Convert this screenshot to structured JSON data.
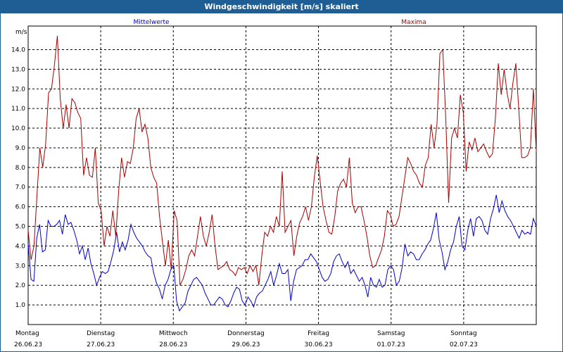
{
  "window": {
    "title": "Windgeschwindigkeit [m/s] skaliert"
  },
  "chart_data": {
    "type": "line",
    "title": "Windgeschwindigkeit [m/s] skaliert",
    "ylabel": "m/s",
    "ylim": [
      0,
      15.2
    ],
    "yticks": [
      "1.0",
      "2.0",
      "3.0",
      "4.0",
      "5.0",
      "6.0",
      "7.0",
      "8.0",
      "9.0",
      "10.0",
      "11.0",
      "12.0",
      "13.0",
      "14.0"
    ],
    "x_day_labels": [
      {
        "day": "Montag",
        "date": "26.06.23"
      },
      {
        "day": "Dienstag",
        "date": "27.06.23"
      },
      {
        "day": "Mittwoch",
        "date": "28.06.23"
      },
      {
        "day": "Donnerstag",
        "date": "29.06.23"
      },
      {
        "day": "Freitag",
        "date": "30.06.23"
      },
      {
        "day": "Samstag",
        "date": "01.07.23"
      },
      {
        "day": "Sonntag",
        "date": "02.07.23"
      }
    ],
    "xlim_days": [
      0,
      7.0
    ],
    "grid": true,
    "series": [
      {
        "name": "Mittelwerte",
        "color": "#0000cc",
        "values": [
          4.1,
          2.3,
          2.2,
          4.4,
          5.1,
          3.7,
          3.8,
          5.3,
          5.0,
          5.0,
          5.1,
          5.3,
          4.6,
          5.6,
          5.1,
          5.2,
          4.8,
          4.3,
          3.6,
          4.0,
          3.3,
          3.9,
          3.1,
          2.6,
          2.0,
          2.4,
          2.7,
          2.6,
          2.7,
          3.2,
          3.8,
          4.7,
          3.7,
          4.2,
          3.8,
          4.3,
          5.1,
          4.7,
          4.4,
          4.2,
          4.0,
          3.7,
          3.5,
          3.4,
          2.6,
          2.1,
          1.8,
          1.3,
          2.0,
          2.3,
          2.8,
          3.0,
          1.2,
          0.7,
          0.9,
          1.1,
          1.7,
          2.0,
          2.3,
          2.4,
          2.2,
          2.0,
          1.6,
          1.3,
          1.0,
          1.0,
          1.2,
          1.4,
          1.3,
          1.0,
          0.9,
          1.2,
          1.6,
          1.9,
          1.8,
          1.2,
          1.0,
          1.4,
          1.2,
          0.9,
          1.4,
          1.6,
          1.7,
          2.0,
          2.3,
          2.7,
          2.0,
          2.5,
          3.1,
          2.6,
          2.6,
          2.8,
          1.2,
          2.2,
          2.8,
          2.9,
          3.0,
          3.3,
          3.3,
          3.6,
          3.4,
          3.2,
          2.8,
          2.4,
          2.2,
          2.3,
          2.6,
          3.2,
          3.5,
          3.6,
          3.2,
          2.9,
          3.2,
          2.6,
          2.8,
          2.5,
          2.2,
          2.4,
          2.0,
          1.4,
          2.4,
          2.0,
          1.9,
          2.3,
          1.9,
          2.0,
          2.8,
          3.0,
          2.8,
          2.0,
          2.2,
          2.9,
          4.1,
          3.5,
          3.7,
          3.6,
          3.3,
          3.3,
          3.6,
          3.8,
          4.1,
          4.3,
          4.9,
          5.7,
          4.3,
          3.7,
          2.8,
          3.2,
          3.8,
          4.2,
          5.0,
          5.5,
          4.0,
          3.8,
          4.8,
          5.4,
          4.5,
          5.4,
          5.5,
          5.3,
          4.8,
          4.6,
          5.4,
          5.9,
          6.6,
          5.7,
          6.3,
          5.8,
          5.5,
          5.3,
          5.0,
          4.7,
          4.4,
          4.8,
          4.6,
          4.7,
          4.6,
          5.4,
          5.0
        ]
      },
      {
        "name": "Maxima",
        "color": "#aa0000",
        "values": [
          4.8,
          3.3,
          4.0,
          6.5,
          9.0,
          8.0,
          9.2,
          11.8,
          12.0,
          13.2,
          14.7,
          11.5,
          10.0,
          11.2,
          10.0,
          11.5,
          11.3,
          10.8,
          10.5,
          7.6,
          8.5,
          7.6,
          7.5,
          9.0,
          6.2,
          5.8,
          4.0,
          5.0,
          4.5,
          5.8,
          4.5,
          6.8,
          8.5,
          7.5,
          8.3,
          8.2,
          9.0,
          10.5,
          11.0,
          9.8,
          10.2,
          9.5,
          8.0,
          7.5,
          7.2,
          5.5,
          4.2,
          3.0,
          4.3,
          2.8,
          5.8,
          5.3,
          2.0,
          2.3,
          2.8,
          3.5,
          3.8,
          3.5,
          4.5,
          5.5,
          4.5,
          4.0,
          4.7,
          5.6,
          4.0,
          2.8,
          2.9,
          3.0,
          3.2,
          2.8,
          2.7,
          2.5,
          2.9,
          2.8,
          2.9,
          2.6,
          3.0,
          2.7,
          3.0,
          2.0,
          3.5,
          4.7,
          4.5,
          5.0,
          4.7,
          5.5,
          5.0,
          7.8,
          4.7,
          5.0,
          5.3,
          3.5,
          4.5,
          5.2,
          5.5,
          6.0,
          5.3,
          6.0,
          7.5,
          8.6,
          7.3,
          6.0,
          5.3,
          4.7,
          4.6,
          5.5,
          6.8,
          7.2,
          7.4,
          7.0,
          8.5,
          6.2,
          5.7,
          6.0,
          6.0,
          5.3,
          4.5,
          3.5,
          2.9,
          3.0,
          3.4,
          3.8,
          4.5,
          5.8,
          5.6,
          5.0,
          5.1,
          5.5,
          6.5,
          7.5,
          8.5,
          8.2,
          7.8,
          7.6,
          7.2,
          7.0,
          8.1,
          8.5,
          10.2,
          9.0,
          10.2,
          13.8,
          14.0,
          10.5,
          6.2,
          9.5,
          10.0,
          9.5,
          11.7,
          10.8,
          7.8,
          9.3,
          8.9,
          9.5,
          8.8,
          9.0,
          9.2,
          8.8,
          8.5,
          8.7,
          10.5,
          13.3,
          11.7,
          13.0,
          11.8,
          11.0,
          12.3,
          13.3,
          11.0,
          8.5,
          8.5,
          8.6,
          9.0,
          12.0,
          8.8
        ]
      }
    ]
  }
}
